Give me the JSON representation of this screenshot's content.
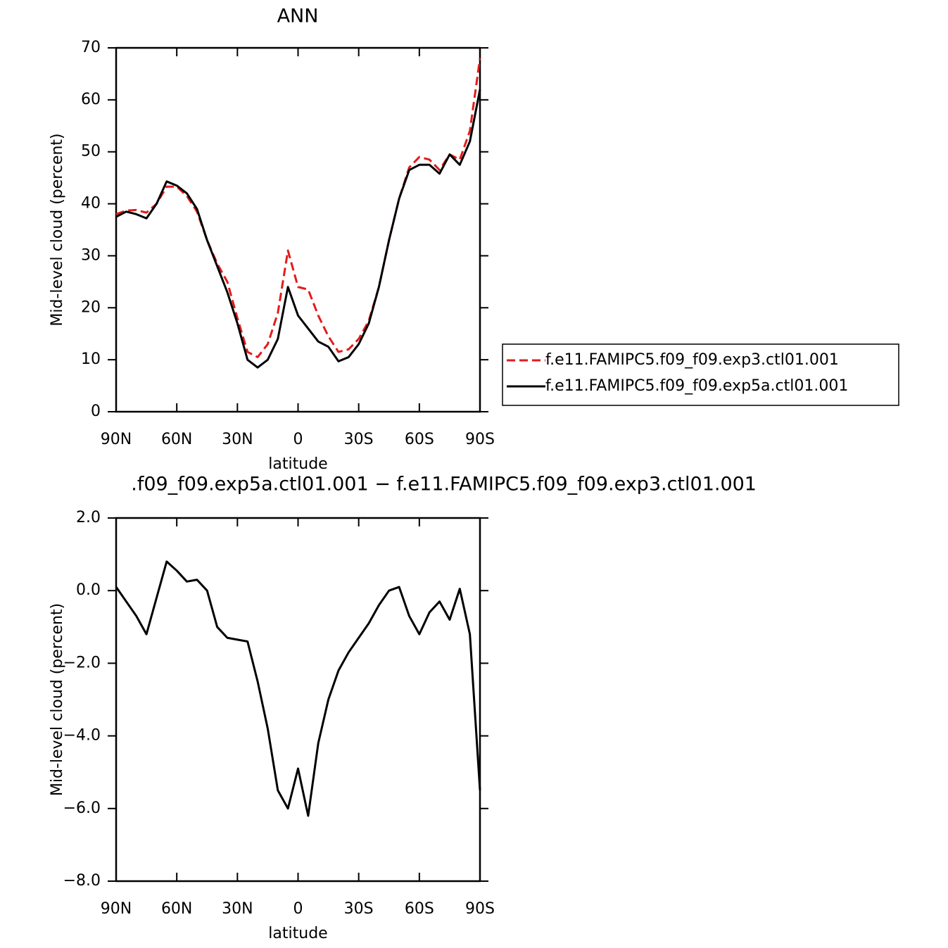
{
  "chart_data": [
    {
      "type": "line",
      "title": "ANN",
      "xlabel": "latitude",
      "ylabel": "Mid-level cloud (percent)",
      "x": [
        90,
        85,
        80,
        75,
        70,
        65,
        60,
        55,
        50,
        45,
        40,
        35,
        30,
        25,
        20,
        15,
        10,
        5,
        0,
        -5,
        -10,
        -15,
        -20,
        -25,
        -30,
        -35,
        -40,
        -45,
        -50,
        -55,
        -60,
        -65,
        -70,
        -75,
        -80,
        -85,
        -90
      ],
      "xlim": [
        90,
        -90
      ],
      "xticks": [
        {
          "value": 90,
          "label": "90N"
        },
        {
          "value": 60,
          "label": "60N"
        },
        {
          "value": 30,
          "label": "30N"
        },
        0,
        {
          "value": -30,
          "label": "30S"
        },
        {
          "value": -60,
          "label": "60S"
        },
        {
          "value": -90,
          "label": "90S"
        }
      ],
      "ylim": [
        0,
        70
      ],
      "yticks": [
        0,
        10,
        20,
        30,
        40,
        50,
        60,
        70
      ],
      "legend": "right",
      "series": [
        {
          "name": "f.e11.FAMIPC5.f09_f09.exp3.ctl01.001",
          "color": "#e41a1c",
          "linestyle": "dashed",
          "values": [
            38,
            38.7,
            38.8,
            38.3,
            40,
            43.3,
            43.3,
            41.5,
            38.5,
            33,
            28.5,
            25,
            18,
            11.5,
            10.5,
            13,
            19,
            31,
            24,
            23.5,
            18.5,
            14.5,
            11.5,
            12,
            14,
            17.5,
            24,
            33,
            41,
            47,
            49,
            48.5,
            46.5,
            49.5,
            48.5,
            54,
            68
          ]
        },
        {
          "name": "f.e11.FAMIPC5.f09_f09.exp5a.ctl01.001",
          "color": "#000000",
          "linestyle": "solid",
          "values": [
            37.5,
            38.5,
            38,
            37.2,
            40,
            44.3,
            43.5,
            42,
            39,
            33,
            28,
            23,
            17,
            10,
            8.5,
            10,
            14,
            24,
            18.5,
            16,
            13.5,
            12.5,
            9.7,
            10.5,
            13,
            17,
            24,
            33,
            41,
            46.5,
            47.5,
            47.5,
            45.8,
            49.5,
            47.5,
            52,
            62
          ]
        }
      ]
    },
    {
      "type": "line",
      "title": ".f09_f09.exp5a.ctl01.001 − f.e11.FAMIPC5.f09_f09.exp3.ctl01.001",
      "xlabel": "latitude",
      "ylabel": "Mid-level cloud (percent)",
      "x": [
        90,
        85,
        80,
        75,
        70,
        65,
        60,
        55,
        50,
        45,
        40,
        35,
        30,
        25,
        20,
        15,
        10,
        5,
        0,
        -5,
        -10,
        -15,
        -20,
        -25,
        -30,
        -35,
        -40,
        -45,
        -50,
        -55,
        -60,
        -65,
        -70,
        -75,
        -80,
        -85,
        -90
      ],
      "xlim": [
        90,
        -90
      ],
      "xticks": [
        {
          "value": 90,
          "label": "90N"
        },
        {
          "value": 60,
          "label": "60N"
        },
        {
          "value": 30,
          "label": "30N"
        },
        0,
        {
          "value": -30,
          "label": "30S"
        },
        {
          "value": -60,
          "label": "60S"
        },
        {
          "value": -90,
          "label": "90S"
        }
      ],
      "ylim": [
        -8,
        2
      ],
      "yticks": [
        {
          "value": -8,
          "label": "−8.0"
        },
        {
          "value": -6,
          "label": "−6.0"
        },
        {
          "value": -4,
          "label": "−4.0"
        },
        {
          "value": -2,
          "label": "−2.0"
        },
        {
          "value": 0,
          "label": "0.0"
        },
        {
          "value": 2,
          "label": "2.0"
        }
      ],
      "color": "#000000",
      "linestyle": "solid",
      "values": [
        0.1,
        -0.3,
        -0.7,
        -1.2,
        -0.2,
        0.8,
        0.55,
        0.25,
        0.3,
        0,
        -1,
        -1.3,
        -1.35,
        -1.4,
        -2.5,
        -3.8,
        -5.5,
        -6.0,
        -4.9,
        -6.2,
        -4.2,
        -3,
        -2.2,
        -1.7,
        -1.3,
        -0.9,
        -0.4,
        0,
        0.1,
        -0.7,
        -1.2,
        -0.6,
        -0.3,
        -0.8,
        0.05,
        -1.2,
        -5.5
      ]
    }
  ]
}
